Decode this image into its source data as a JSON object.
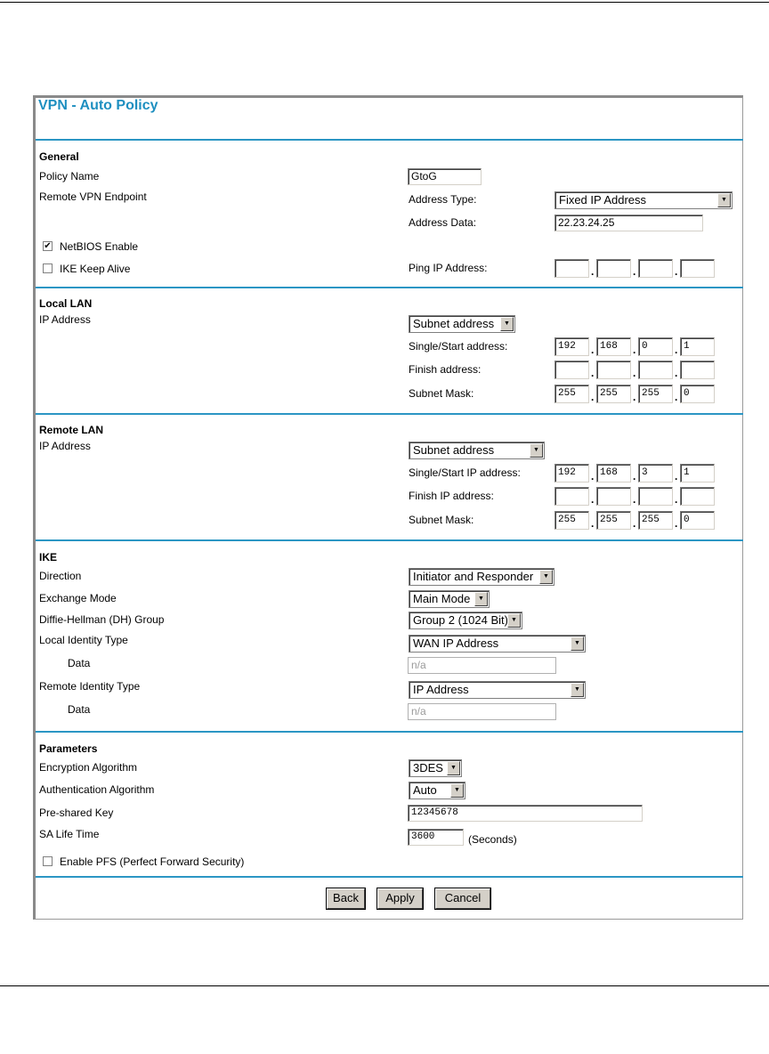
{
  "title": "VPN - Auto Policy",
  "general": {
    "heading": "General",
    "policy_name_label": "Policy Name",
    "policy_name": "GtoG",
    "endpoint_label": "Remote VPN Endpoint",
    "address_type_label": "Address Type:",
    "address_type": "Fixed IP Address",
    "address_data_label": "Address Data:",
    "address_data": "22.23.24.25",
    "netbios_label": "NetBIOS Enable",
    "netbios_checked": true,
    "keepalive_label": "IKE Keep Alive",
    "keepalive_checked": false,
    "ping_label": "Ping IP Address:",
    "ping_ip": [
      "",
      "",
      "",
      ""
    ]
  },
  "local_lan": {
    "heading": "Local LAN",
    "ip_label": "IP Address",
    "ip_type": "Subnet address",
    "start_label": "Single/Start address:",
    "start": [
      "192",
      "168",
      "0",
      "1"
    ],
    "finish_label": "Finish address:",
    "finish": [
      "",
      "",
      "",
      ""
    ],
    "mask_label": "Subnet Mask:",
    "mask": [
      "255",
      "255",
      "255",
      "0"
    ]
  },
  "remote_lan": {
    "heading": "Remote LAN",
    "ip_label": "IP Address",
    "ip_type": "Subnet address",
    "start_label": "Single/Start IP address:",
    "start": [
      "192",
      "168",
      "3",
      "1"
    ],
    "finish_label": "Finish IP address:",
    "finish": [
      "",
      "",
      "",
      ""
    ],
    "mask_label": "Subnet Mask:",
    "mask": [
      "255",
      "255",
      "255",
      "0"
    ]
  },
  "ike": {
    "heading": "IKE",
    "direction_label": "Direction",
    "direction": "Initiator and Responder",
    "exchange_label": "Exchange Mode",
    "exchange": "Main Mode",
    "dh_label": "Diffie-Hellman (DH) Group",
    "dh": "Group 2 (1024 Bit)",
    "local_id_label": "Local Identity Type",
    "local_id": "WAN IP Address",
    "local_data_label": "Data",
    "local_data": "n/a",
    "remote_id_label": "Remote Identity Type",
    "remote_id": "IP Address",
    "remote_data_label": "Data",
    "remote_data": "n/a"
  },
  "params": {
    "heading": "Parameters",
    "enc_label": "Encryption Algorithm",
    "enc": "3DES",
    "auth_label": "Authentication Algorithm",
    "auth": "Auto",
    "psk_label": "Pre-shared Key",
    "psk": "12345678",
    "sa_label": "SA Life Time",
    "sa": "3600",
    "sa_unit": "(Seconds)",
    "pfs_label": "Enable PFS (Perfect Forward Security)",
    "pfs_checked": false
  },
  "buttons": {
    "back": "Back",
    "apply": "Apply",
    "cancel": "Cancel"
  },
  "colors": {
    "accent": "#2b96c4",
    "title": "#1e8fc0"
  }
}
